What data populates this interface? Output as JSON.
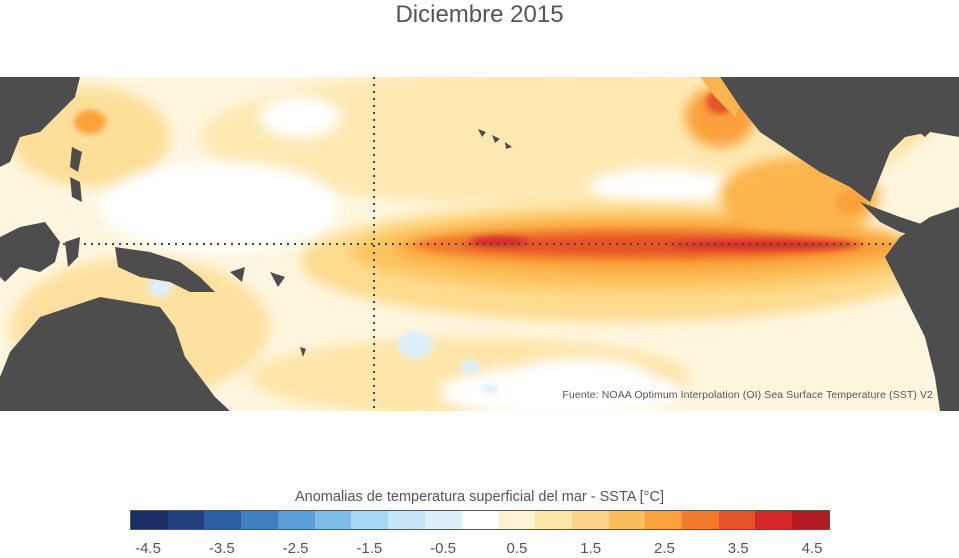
{
  "title": "Diciembre 2015",
  "source": "Fuente: NOAA Optimum Interpolation (OI) Sea Surface Temperature (SST) V2",
  "colorbar": {
    "title": "Anomalias de temperatura superficial del mar - SSTA  [°C]",
    "colors": [
      "#1a2f66",
      "#223f80",
      "#2c5ea6",
      "#3f7fc0",
      "#5c9fd8",
      "#7dbbe8",
      "#a6d8f4",
      "#c6e6f7",
      "#ddf0f9",
      "#ffffff",
      "#fff3d6",
      "#fde6a8",
      "#fdd48a",
      "#fcbe5c",
      "#fba23a",
      "#f5792a",
      "#e8522a",
      "#d4282a",
      "#b41a24"
    ],
    "ticks": [
      "-4.5",
      "-3.5",
      "-2.5",
      "-1.5",
      "-0.5",
      "0.5",
      "1.5",
      "2.5",
      "3.5",
      "4.5"
    ]
  }
}
